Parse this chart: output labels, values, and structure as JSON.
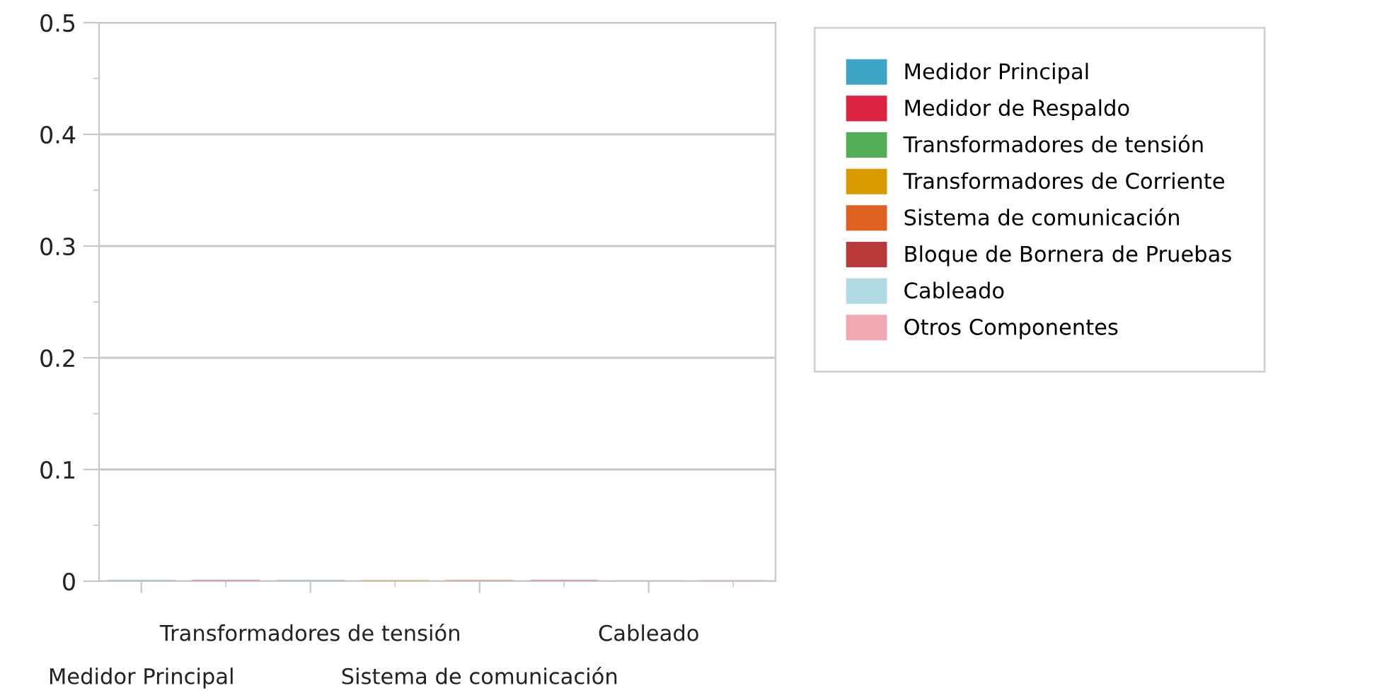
{
  "chart_data": {
    "type": "bar",
    "categories": [
      "Medidor Principal",
      null,
      "Transformadores de tensión",
      null,
      "Sistema de comunicación",
      null,
      "Cableado",
      null
    ],
    "series": [
      {
        "name": "Medidor Principal",
        "color": "#3ea6c4",
        "values": [
          0,
          null,
          null,
          null,
          null,
          null,
          null,
          null
        ]
      },
      {
        "name": "Medidor de Respaldo",
        "color": "#dc2341",
        "values": [
          null,
          0,
          null,
          null,
          null,
          null,
          null,
          null
        ]
      },
      {
        "name": "Transformadores de tensión",
        "color": "#54ad57",
        "values": [
          null,
          null,
          0,
          null,
          null,
          null,
          null,
          null
        ]
      },
      {
        "name": "Transformadores de Corriente",
        "color": "#d89b00",
        "values": [
          null,
          null,
          null,
          0,
          null,
          null,
          null,
          null
        ]
      },
      {
        "name": "Sistema de comunicación",
        "color": "#e06222",
        "values": [
          null,
          null,
          null,
          null,
          0,
          null,
          null,
          null
        ]
      },
      {
        "name": "Bloque de Bornera de Pruebas",
        "color": "#b93a3a",
        "values": [
          null,
          null,
          null,
          null,
          null,
          0,
          null,
          null
        ]
      },
      {
        "name": "Cableado",
        "color": "#b1dbe3",
        "values": [
          null,
          null,
          null,
          null,
          null,
          null,
          0,
          null
        ]
      },
      {
        "name": "Otros Componentes",
        "color": "#f2a8b2",
        "values": [
          null,
          null,
          null,
          null,
          null,
          null,
          null,
          0
        ]
      }
    ],
    "ylim": [
      0,
      0.5
    ],
    "yticks": [
      0,
      0.1,
      0.2,
      0.3,
      0.4,
      0.5
    ],
    "grid": "y",
    "legend": "right"
  }
}
